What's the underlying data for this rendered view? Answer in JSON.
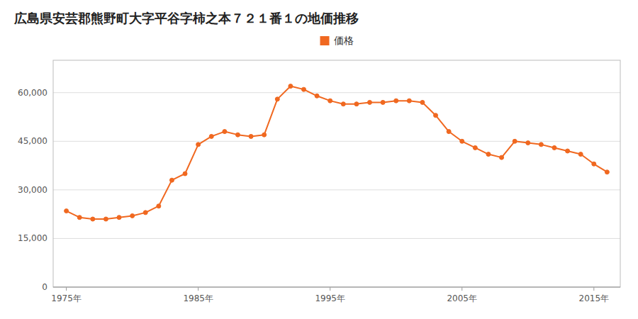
{
  "chart_data": {
    "type": "line",
    "title": "広島県安芸郡熊野町大字平谷字柿之本７２１番１の地価推移",
    "x": [
      1975,
      1976,
      1977,
      1978,
      1979,
      1980,
      1981,
      1982,
      1983,
      1984,
      1985,
      1986,
      1987,
      1988,
      1989,
      1990,
      1991,
      1992,
      1993,
      1994,
      1995,
      1996,
      1997,
      1998,
      1999,
      2000,
      2001,
      2002,
      2003,
      2004,
      2005,
      2006,
      2007,
      2008,
      2009,
      2010,
      2011,
      2012,
      2013,
      2014,
      2015,
      2016
    ],
    "series": [
      {
        "name": "価格",
        "color": "#f06820",
        "marker": "circle",
        "values": [
          23500,
          21500,
          21000,
          21000,
          21500,
          22000,
          23000,
          25000,
          33000,
          35000,
          44000,
          46500,
          48000,
          47000,
          46500,
          47000,
          58000,
          62000,
          61000,
          59000,
          57500,
          56500,
          56500,
          57000,
          57000,
          57500,
          57500,
          57000,
          53000,
          48000,
          45000,
          43000,
          41000,
          40000,
          45000,
          44500,
          44000,
          43000,
          42000,
          41000,
          38000,
          35500
        ]
      }
    ],
    "xlim": [
      1974,
      2017
    ],
    "xticks": [
      {
        "value": 1975,
        "label": "1975年"
      },
      {
        "value": 1985,
        "label": "1985年"
      },
      {
        "value": 1995,
        "label": "1995年"
      },
      {
        "value": 2005,
        "label": "2005年"
      },
      {
        "value": 2015,
        "label": "2015年"
      }
    ],
    "ylim": [
      0,
      70000
    ],
    "yticks": [
      0,
      {
        "value": 15000,
        "label": "15,000"
      },
      {
        "value": 30000,
        "label": "30,000"
      },
      {
        "value": 45000,
        "label": "45,000"
      },
      {
        "value": 60000,
        "label": "60,000"
      }
    ],
    "grid": "y",
    "legend": "top"
  }
}
